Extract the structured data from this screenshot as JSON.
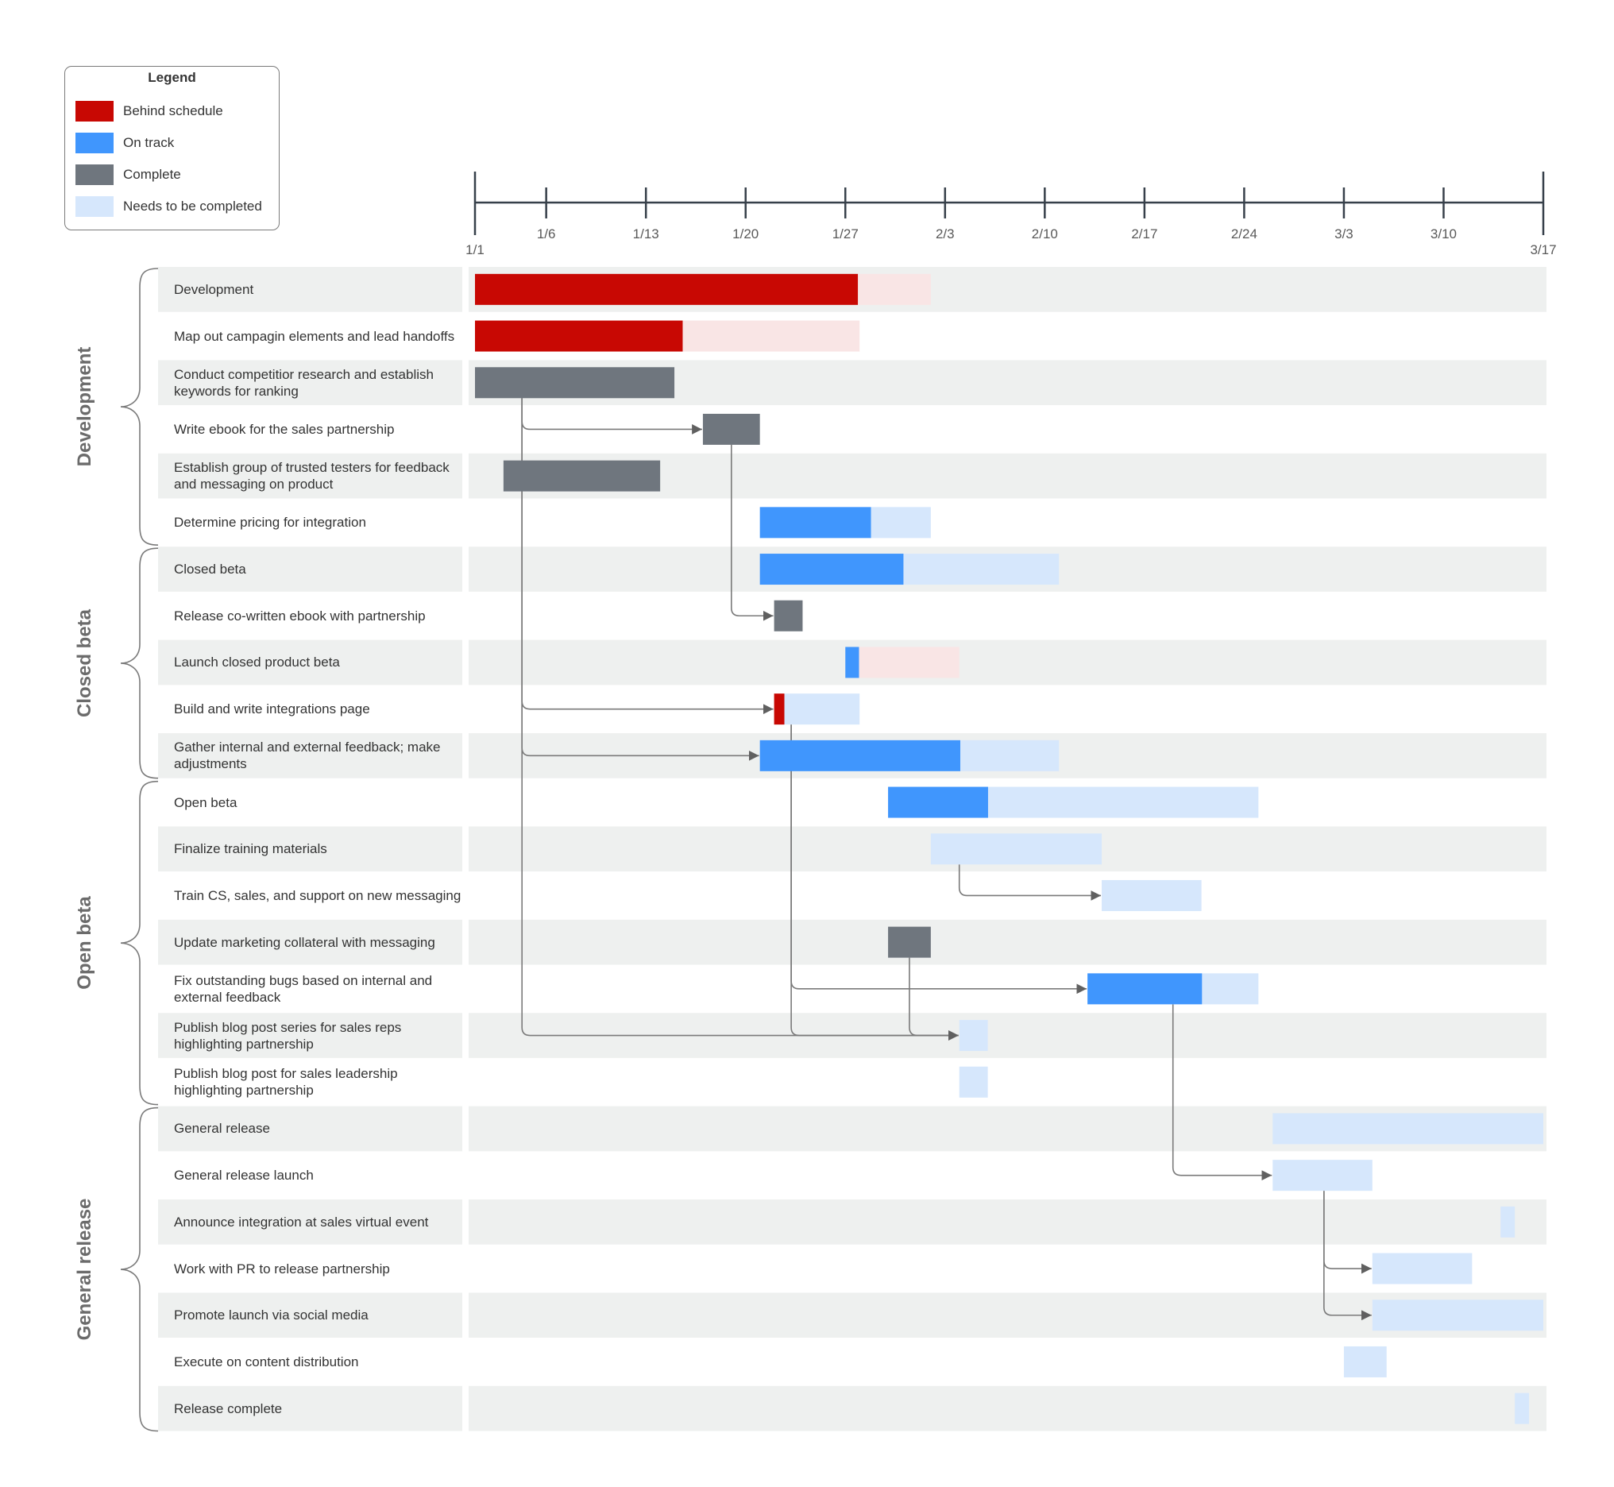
{
  "legend": {
    "title": "Legend",
    "items": [
      {
        "label": "Behind schedule",
        "color": "#C80803"
      },
      {
        "label": "On track",
        "color": "#4096FD"
      },
      {
        "label": "Complete",
        "color": "#6F767E"
      },
      {
        "label": "Needs to be completed",
        "color": "#D6E7FC"
      }
    ]
  },
  "colors": {
    "behind": "#C80803",
    "behind_remaining": "#F9E5E5",
    "on_track": "#4096FD",
    "complete": "#6F767E",
    "remaining": "#D6E7FC",
    "row_band": "#EEF0EF",
    "axis": "#37404A",
    "connector": "#7a7a7a",
    "arrowhead": "#606060"
  },
  "chart_data": {
    "type": "gantt",
    "title": "",
    "time_axis": {
      "unit": "day",
      "start_label": "1/1",
      "range_days": [
        0,
        75
      ],
      "ticks": [
        {
          "day": 0,
          "label": "1/1",
          "major": true
        },
        {
          "day": 5,
          "label": "1/6"
        },
        {
          "day": 12,
          "label": "1/13"
        },
        {
          "day": 19,
          "label": "1/20"
        },
        {
          "day": 26,
          "label": "1/27"
        },
        {
          "day": 33,
          "label": "2/3"
        },
        {
          "day": 40,
          "label": "2/10"
        },
        {
          "day": 47,
          "label": "2/17"
        },
        {
          "day": 54,
          "label": "2/24"
        },
        {
          "day": 61,
          "label": "3/3"
        },
        {
          "day": 68,
          "label": "3/10"
        },
        {
          "day": 75,
          "label": "3/17",
          "major": true
        }
      ]
    },
    "groups": [
      {
        "name": "Development",
        "rows": [
          0,
          5
        ]
      },
      {
        "name": "Closed beta",
        "rows": [
          6,
          10
        ]
      },
      {
        "name": "Open beta",
        "rows": [
          11,
          17
        ]
      },
      {
        "name": "General release",
        "rows": [
          18,
          24
        ]
      }
    ],
    "tasks": [
      {
        "label": "Development",
        "start": 0,
        "end": 32,
        "progress": 0.84,
        "status": "behind"
      },
      {
        "label": "Map out campagin elements and lead handoffs",
        "start": 0,
        "end": 27,
        "progress": 0.54,
        "status": "behind"
      },
      {
        "label": "Conduct competitior research and establish keywords for ranking",
        "start": 0,
        "end": 14,
        "progress": 1,
        "status": "complete"
      },
      {
        "label": "Write ebook for the sales partnership",
        "start": 16,
        "end": 20,
        "progress": 1,
        "status": "complete"
      },
      {
        "label": "Establish group of trusted testers for feedback and messaging on product",
        "start": 2,
        "end": 13,
        "progress": 1,
        "status": "complete"
      },
      {
        "label": "Determine pricing for integration",
        "start": 20,
        "end": 32,
        "progress": 0.65,
        "status": "on_track"
      },
      {
        "label": "Closed beta",
        "start": 20,
        "end": 41,
        "progress": 0.48,
        "status": "on_track"
      },
      {
        "label": "Release co-written ebook with partnership",
        "start": 21,
        "end": 23,
        "progress": 1,
        "status": "complete"
      },
      {
        "label": "Launch closed product beta",
        "start": 26,
        "end": 34,
        "progress": 0.12,
        "status": "on_track",
        "remaining_status": "behind"
      },
      {
        "label": "Build and write integrations page",
        "start": 21,
        "end": 27,
        "progress": 0.12,
        "status": "behind",
        "remaining_status": "needs"
      },
      {
        "label": "Gather internal and external feedback; make adjustments",
        "start": 20,
        "end": 41,
        "progress": 0.67,
        "status": "on_track"
      },
      {
        "label": "Open beta",
        "start": 29,
        "end": 55,
        "progress": 0.27,
        "status": "on_track"
      },
      {
        "label": "Finalize training materials",
        "start": 32,
        "end": 44,
        "progress": 0,
        "status": "needs"
      },
      {
        "label": "Train CS, sales, and support on new messaging",
        "start": 44,
        "end": 51,
        "progress": 0,
        "status": "needs"
      },
      {
        "label": "Update marketing collateral with messaging",
        "start": 29,
        "end": 32,
        "progress": 1,
        "status": "complete"
      },
      {
        "label": "Fix outstanding bugs based on internal and external feedback",
        "start": 43,
        "end": 55,
        "progress": 0.67,
        "status": "on_track"
      },
      {
        "label": "Publish blog post series for sales reps highlighting partnership",
        "start": 34,
        "end": 36,
        "progress": 0,
        "status": "needs"
      },
      {
        "label": "Publish blog post for sales leadership highlighting partnership",
        "start": 34,
        "end": 36,
        "progress": 0,
        "status": "needs"
      },
      {
        "label": "General release",
        "start": 56,
        "end": 75,
        "progress": 0,
        "status": "needs"
      },
      {
        "label": "General release launch",
        "start": 56,
        "end": 63,
        "progress": 0,
        "status": "needs"
      },
      {
        "label": "Announce integration at sales virtual event",
        "start": 72,
        "end": 73,
        "progress": 0,
        "status": "needs"
      },
      {
        "label": "Work with PR to release partnership",
        "start": 63,
        "end": 70,
        "progress": 0,
        "status": "needs"
      },
      {
        "label": "Promote launch via social media",
        "start": 63,
        "end": 75,
        "progress": 0,
        "status": "needs"
      },
      {
        "label": "Execute on content distribution",
        "start": 61,
        "end": 64,
        "progress": 0,
        "status": "needs"
      },
      {
        "label": "Release complete",
        "start": 73,
        "end": 74,
        "progress": 0,
        "status": "needs"
      }
    ],
    "dependencies": [
      {
        "from": 2,
        "to": 3,
        "from_day": 3.3
      },
      {
        "from": 2,
        "to": 9,
        "from_day": 3.3
      },
      {
        "from": 2,
        "to": 10,
        "from_day": 3.3
      },
      {
        "from": 2,
        "to": 16,
        "from_day": 3.3
      },
      {
        "from": 3,
        "to": 7,
        "from_day": 18
      },
      {
        "from": 9,
        "to": 15,
        "from_day": 22.2
      },
      {
        "from": 9,
        "to": 16,
        "from_day": 22.2
      },
      {
        "from": 14,
        "to": 16,
        "from_day": 30.5
      },
      {
        "from": 12,
        "to": 13,
        "from_day": 34
      },
      {
        "from": 15,
        "to": 19,
        "from_day": 49
      },
      {
        "from": 19,
        "to": 21,
        "from_day": 59.6
      },
      {
        "from": 19,
        "to": 22,
        "from_day": 59.6
      }
    ]
  }
}
